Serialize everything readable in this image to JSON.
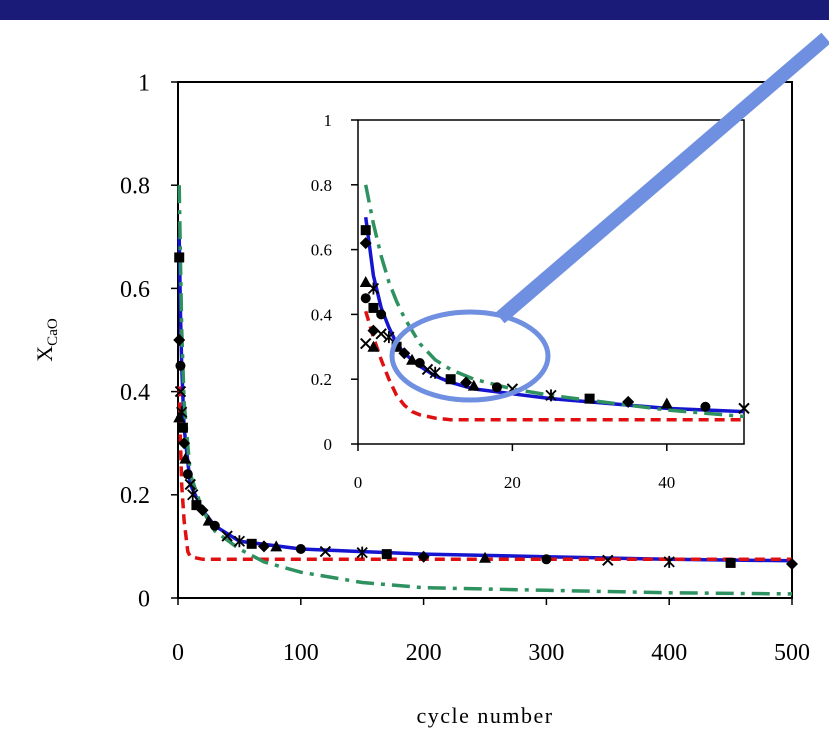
{
  "colors": {
    "banner": "#1a1a78",
    "callout": "#6f8fe0",
    "blue": "#1515d0",
    "red": "#e01010",
    "green": "#2e9160",
    "markers": "#000000"
  },
  "chart_data": [
    {
      "type": "line",
      "title": "",
      "xlabel": "cycle number",
      "ylabel": "X",
      "ylabel_subscript": "CaO",
      "xlim": [
        0,
        500
      ],
      "ylim": [
        0,
        1
      ],
      "x_ticks": [
        "0",
        "100",
        "200",
        "300",
        "400",
        "500"
      ],
      "y_ticks": [
        "0",
        "0.2",
        "0.4",
        "0.6",
        "0.8",
        "1"
      ],
      "grid": false,
      "legend": "none",
      "series": [
        {
          "style": "solid",
          "color": "blue",
          "x": [
            1,
            2,
            3,
            5,
            10,
            20,
            30,
            50,
            100,
            150,
            200,
            300,
            400,
            500
          ],
          "y": [
            0.7,
            0.55,
            0.45,
            0.33,
            0.22,
            0.17,
            0.14,
            0.11,
            0.095,
            0.09,
            0.085,
            0.08,
            0.075,
            0.072
          ]
        },
        {
          "style": "dashed",
          "color": "red",
          "x": [
            1,
            2,
            3,
            5,
            8,
            10,
            20,
            50,
            100,
            200,
            300,
            400,
            500
          ],
          "y": [
            0.41,
            0.3,
            0.22,
            0.15,
            0.09,
            0.08,
            0.075,
            0.075,
            0.075,
            0.075,
            0.075,
            0.075,
            0.075
          ]
        },
        {
          "style": "dash-dot",
          "color": "green",
          "x": [
            1,
            2,
            3,
            5,
            10,
            20,
            30,
            50,
            70,
            100,
            150,
            200,
            300,
            400,
            500
          ],
          "y": [
            0.8,
            0.65,
            0.52,
            0.38,
            0.24,
            0.17,
            0.13,
            0.095,
            0.07,
            0.05,
            0.03,
            0.02,
            0.015,
            0.01,
            0.008
          ]
        },
        {
          "style": "markers",
          "color": "markers",
          "x": [
            1,
            1,
            1,
            2,
            2,
            3,
            4,
            5,
            6,
            8,
            10,
            12,
            15,
            20,
            25,
            30,
            40,
            50,
            60,
            70,
            80,
            100,
            120,
            150,
            170,
            200,
            250,
            300,
            350,
            400,
            450,
            500
          ],
          "y": [
            0.66,
            0.5,
            0.35,
            0.45,
            0.4,
            0.36,
            0.33,
            0.3,
            0.27,
            0.24,
            0.22,
            0.2,
            0.18,
            0.17,
            0.15,
            0.14,
            0.12,
            0.11,
            0.105,
            0.1,
            0.1,
            0.095,
            0.09,
            0.088,
            0.085,
            0.08,
            0.078,
            0.075,
            0.073,
            0.07,
            0.068,
            0.066
          ]
        }
      ]
    },
    {
      "type": "line",
      "title": "",
      "xlabel": "",
      "ylabel": "",
      "xlim": [
        0,
        50
      ],
      "ylim": [
        0,
        1
      ],
      "x_ticks": [
        "0",
        "20",
        "40"
      ],
      "y_ticks": [
        "0",
        "0.2",
        "0.4",
        "0.6",
        "0.8",
        "1"
      ],
      "grid": false,
      "legend": "none",
      "series": [
        {
          "style": "solid",
          "color": "blue",
          "x": [
            1,
            2,
            3,
            4,
            5,
            6,
            8,
            10,
            12,
            15,
            20,
            25,
            30,
            35,
            40,
            45,
            50
          ],
          "y": [
            0.7,
            0.52,
            0.42,
            0.36,
            0.31,
            0.28,
            0.24,
            0.21,
            0.19,
            0.17,
            0.155,
            0.14,
            0.13,
            0.12,
            0.11,
            0.105,
            0.1
          ]
        },
        {
          "style": "dashed",
          "color": "red",
          "x": [
            1,
            2,
            3,
            4,
            5,
            6,
            7,
            8,
            10,
            12,
            15,
            20,
            30,
            40,
            50
          ],
          "y": [
            0.41,
            0.33,
            0.26,
            0.2,
            0.15,
            0.12,
            0.1,
            0.09,
            0.08,
            0.075,
            0.075,
            0.075,
            0.075,
            0.075,
            0.075
          ]
        },
        {
          "style": "dash-dot",
          "color": "green",
          "x": [
            1,
            2,
            3,
            4,
            5,
            6,
            8,
            10,
            12,
            15,
            20,
            25,
            30,
            35,
            40,
            45,
            50
          ],
          "y": [
            0.8,
            0.68,
            0.58,
            0.5,
            0.44,
            0.39,
            0.31,
            0.26,
            0.23,
            0.2,
            0.17,
            0.15,
            0.135,
            0.12,
            0.105,
            0.095,
            0.085
          ]
        },
        {
          "style": "markers",
          "color": "markers",
          "x": [
            1,
            1,
            1,
            1,
            1,
            2,
            2,
            2,
            2,
            3,
            3,
            4,
            5,
            6,
            7,
            8,
            9,
            10,
            12,
            14,
            15,
            18,
            20,
            25,
            30,
            35,
            40,
            45,
            50
          ],
          "y": [
            0.66,
            0.62,
            0.5,
            0.45,
            0.31,
            0.48,
            0.42,
            0.35,
            0.3,
            0.4,
            0.34,
            0.33,
            0.3,
            0.28,
            0.26,
            0.25,
            0.23,
            0.22,
            0.2,
            0.19,
            0.18,
            0.175,
            0.17,
            0.15,
            0.14,
            0.13,
            0.125,
            0.115,
            0.11
          ]
        }
      ]
    }
  ]
}
